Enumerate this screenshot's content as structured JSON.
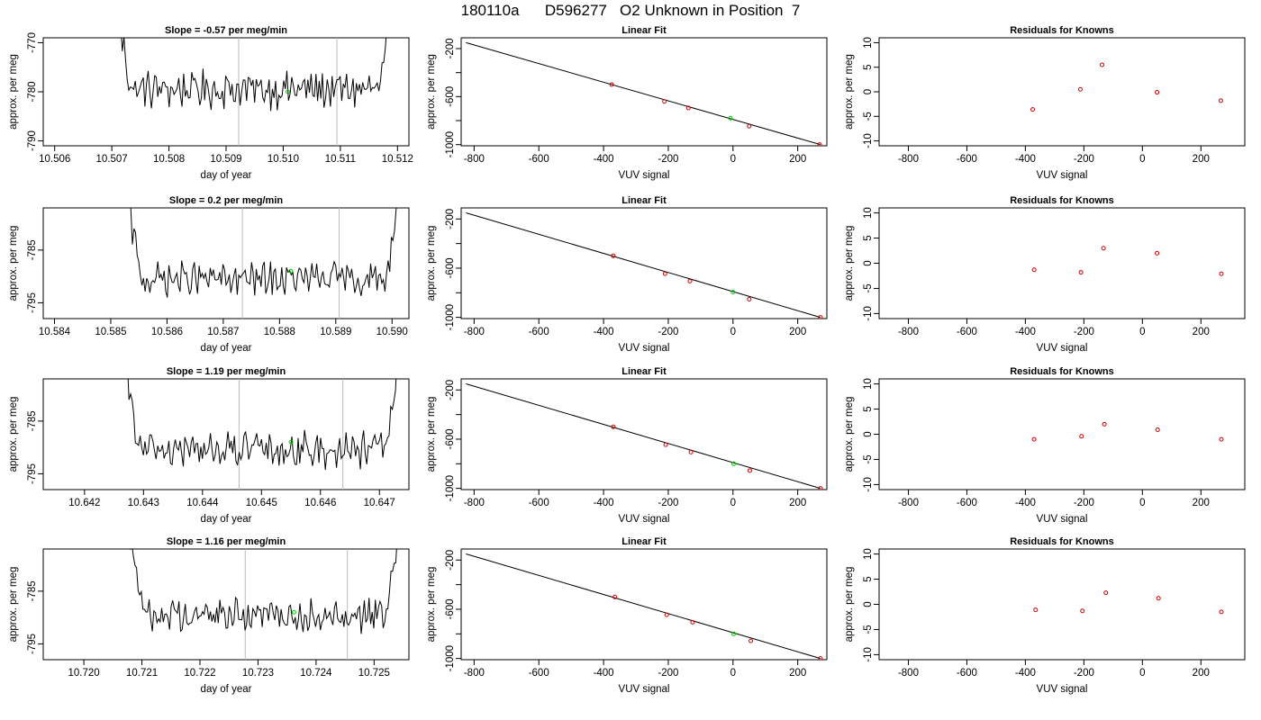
{
  "title": "180110a      D596277   O2 Unknown in Position  7",
  "colors": {
    "trace": "#000000",
    "fit_line": "#000000",
    "known_points": "#cc0000",
    "unknown_point": "#00cc00",
    "cycle_lines": "#bbbbbb"
  },
  "chart_data": [
    {
      "row": 1,
      "type": "line",
      "title": "Slope =  -0.57  per meg/min",
      "xlabel": "day of year",
      "ylabel": "approx. per meg",
      "xlim": [
        10.5058,
        10.5122
      ],
      "ylim": [
        -791,
        -769
      ],
      "xticks": [
        "10.506",
        "10.507",
        "10.508",
        "10.509",
        "10.510",
        "10.511",
        "10.512"
      ],
      "xtick_values": [
        10.506,
        10.507,
        10.508,
        10.509,
        10.51,
        10.511,
        10.512
      ],
      "yticks": [
        "-790",
        "-780",
        "-770"
      ],
      "ytick_values": [
        -790,
        -780,
        -770
      ],
      "x_start": 10.5071,
      "x_end": 10.5119,
      "baseline": -779.5,
      "amplitude": 3.2,
      "cycle_lines": [
        10.50922,
        10.51094
      ],
      "unknown_point": [
        10.51008,
        -780
      ]
    },
    {
      "row": 1,
      "type": "scatter",
      "title": "Linear Fit",
      "xlabel": "VUV signal",
      "ylabel": "approx. per meg",
      "xlim": [
        -840,
        290
      ],
      "ylim": [
        -1010,
        -110
      ],
      "xticks": [
        "-800",
        "-600",
        "-400",
        "-200",
        "0",
        "200"
      ],
      "xtick_values": [
        -800,
        -600,
        -400,
        -200,
        0,
        200
      ],
      "yticks": [
        "-1000",
        "-600",
        "-200"
      ],
      "ytick_values": [
        -1000,
        -600,
        -200
      ],
      "y_minor_ticks": [
        -800,
        -400
      ],
      "fit_line": [
        [
          -825,
          -150
        ],
        [
          270,
          -1000
        ]
      ],
      "knowns": [
        [
          -375,
          -500
        ],
        [
          -212,
          -640
        ],
        [
          -138,
          -695
        ],
        [
          50,
          -847
        ],
        [
          268,
          -1000
        ]
      ],
      "unknown": [
        -8,
        -780
      ]
    },
    {
      "row": 1,
      "type": "scatter",
      "title": "Residuals for Knowns",
      "xlabel": "VUV signal",
      "ylabel": "approx. per meg",
      "xlim": [
        -900,
        350
      ],
      "ylim": [
        -11,
        11
      ],
      "xticks": [
        "-800",
        "-600",
        "-400",
        "-200",
        "0",
        "200"
      ],
      "xtick_values": [
        -800,
        -600,
        -400,
        -200,
        0,
        200
      ],
      "yticks": [
        "-10",
        "-5",
        "0",
        "5",
        "10"
      ],
      "ytick_values": [
        -10,
        -5,
        0,
        5,
        10
      ],
      "residuals": [
        [
          -375,
          -3.6
        ],
        [
          -212,
          0.5
        ],
        [
          -138,
          5.5
        ],
        [
          50,
          -0.1
        ],
        [
          268,
          -1.8
        ]
      ]
    },
    {
      "row": 2,
      "type": "line",
      "title": "Slope =  0.2  per meg/min",
      "xlabel": "day of year",
      "ylabel": "approx. per meg",
      "xlim": [
        10.5838,
        10.5903
      ],
      "ylim": [
        -798,
        -777
      ],
      "xticks": [
        "10.584",
        "10.585",
        "10.586",
        "10.587",
        "10.588",
        "10.589",
        "10.590"
      ],
      "xtick_values": [
        10.584,
        10.585,
        10.586,
        10.587,
        10.588,
        10.589,
        10.59
      ],
      "yticks": [
        "-795",
        "-785"
      ],
      "ytick_values": [
        -795,
        -785
      ],
      "x_start": 10.5853,
      "x_end": 10.5901,
      "baseline": -790.5,
      "amplitude": 2.6,
      "cycle_lines": [
        10.58734,
        10.58906
      ],
      "unknown_point": [
        10.5882,
        -789
      ]
    },
    {
      "row": 2,
      "type": "scatter",
      "title": "Linear Fit",
      "xlabel": "VUV signal",
      "ylabel": "approx. per meg",
      "xlim": [
        -840,
        290
      ],
      "ylim": [
        -1010,
        -110
      ],
      "xticks": [
        "-800",
        "-600",
        "-400",
        "-200",
        "0",
        "200"
      ],
      "xtick_values": [
        -800,
        -600,
        -400,
        -200,
        0,
        200
      ],
      "yticks": [
        "-1000",
        "-600",
        "-200"
      ],
      "ytick_values": [
        -1000,
        -600,
        -200
      ],
      "y_minor_ticks": [
        -800,
        -400
      ],
      "fit_line": [
        [
          -825,
          -150
        ],
        [
          270,
          -1000
        ]
      ],
      "knowns": [
        [
          -370,
          -500
        ],
        [
          -210,
          -645
        ],
        [
          -133,
          -705
        ],
        [
          50,
          -853
        ],
        [
          270,
          -1000
        ]
      ],
      "unknown": [
        0,
        -795
      ]
    },
    {
      "row": 2,
      "type": "scatter",
      "title": "Residuals for Knowns",
      "xlabel": "VUV signal",
      "ylabel": "approx. per meg",
      "xlim": [
        -900,
        350
      ],
      "ylim": [
        -11,
        11
      ],
      "xticks": [
        "-800",
        "-600",
        "-400",
        "-200",
        "0",
        "200"
      ],
      "xtick_values": [
        -800,
        -600,
        -400,
        -200,
        0,
        200
      ],
      "yticks": [
        "-10",
        "-5",
        "0",
        "5",
        "10"
      ],
      "ytick_values": [
        -10,
        -5,
        0,
        5,
        10
      ],
      "residuals": [
        [
          -370,
          -1.3
        ],
        [
          -210,
          -1.8
        ],
        [
          -133,
          3.0
        ],
        [
          50,
          2.0
        ],
        [
          270,
          -2.1
        ]
      ]
    },
    {
      "row": 3,
      "type": "line",
      "title": "Slope =  1.19  per meg/min",
      "xlabel": "day of year",
      "ylabel": "approx. per meg",
      "xlim": [
        10.6413,
        10.6475
      ],
      "ylim": [
        -798,
        -777
      ],
      "xticks": [
        "10.642",
        "10.643",
        "10.644",
        "10.645",
        "10.646",
        "10.647"
      ],
      "xtick_values": [
        10.642,
        10.643,
        10.644,
        10.645,
        10.646,
        10.647
      ],
      "yticks": [
        "-795",
        "-785"
      ],
      "ytick_values": [
        -795,
        -785
      ],
      "x_start": 10.6427,
      "x_end": 10.6473,
      "baseline": -790.5,
      "amplitude": 2.8,
      "cycle_lines": [
        10.64462,
        10.64638
      ],
      "unknown_point": [
        10.6455,
        -789
      ]
    },
    {
      "row": 3,
      "type": "scatter",
      "title": "Linear Fit",
      "xlabel": "VUV signal",
      "ylabel": "approx. per meg",
      "xlim": [
        -840,
        290
      ],
      "ylim": [
        -1010,
        -110
      ],
      "xticks": [
        "-800",
        "-600",
        "-400",
        "-200",
        "0",
        "200"
      ],
      "xtick_values": [
        -800,
        -600,
        -400,
        -200,
        0,
        200
      ],
      "yticks": [
        "-1000",
        "-600",
        "-200"
      ],
      "ytick_values": [
        -1000,
        -600,
        -200
      ],
      "y_minor_ticks": [
        -800,
        -400
      ],
      "fit_line": [
        [
          -825,
          -150
        ],
        [
          270,
          -1000
        ]
      ],
      "knowns": [
        [
          -370,
          -500
        ],
        [
          -208,
          -645
        ],
        [
          -130,
          -705
        ],
        [
          52,
          -855
        ],
        [
          270,
          -1000
        ]
      ],
      "unknown": [
        2,
        -800
      ]
    },
    {
      "row": 3,
      "type": "scatter",
      "title": "Residuals for Knowns",
      "xlabel": "VUV signal",
      "ylabel": "approx. per meg",
      "xlim": [
        -900,
        350
      ],
      "ylim": [
        -11,
        11
      ],
      "xticks": [
        "-800",
        "-600",
        "-400",
        "-200",
        "0",
        "200"
      ],
      "xtick_values": [
        -800,
        -600,
        -400,
        -200,
        0,
        200
      ],
      "yticks": [
        "-10",
        "-5",
        "0",
        "5",
        "10"
      ],
      "ytick_values": [
        -10,
        -5,
        0,
        5,
        10
      ],
      "residuals": [
        [
          -370,
          -1.0
        ],
        [
          -208,
          -0.4
        ],
        [
          -130,
          2.0
        ],
        [
          52,
          0.9
        ],
        [
          270,
          -1.0
        ]
      ]
    },
    {
      "row": 4,
      "type": "line",
      "title": "Slope =  1.16  per meg/min",
      "xlabel": "day of year",
      "ylabel": "approx. per meg",
      "xlim": [
        10.7193,
        10.7256
      ],
      "ylim": [
        -798,
        -777
      ],
      "xticks": [
        "10.720",
        "10.721",
        "10.722",
        "10.723",
        "10.724",
        "10.725"
      ],
      "xtick_values": [
        10.72,
        10.721,
        10.722,
        10.723,
        10.724,
        10.725
      ],
      "yticks": [
        "-795",
        "-785"
      ],
      "ytick_values": [
        -795,
        -785
      ],
      "x_start": 10.7208,
      "x_end": 10.7254,
      "baseline": -789.5,
      "amplitude": 2.6,
      "cycle_lines": [
        10.72278,
        10.72454
      ],
      "unknown_point": [
        10.72362,
        -789
      ]
    },
    {
      "row": 4,
      "type": "scatter",
      "title": "Linear Fit",
      "xlabel": "VUV signal",
      "ylabel": "approx. per meg",
      "xlim": [
        -840,
        290
      ],
      "ylim": [
        -1010,
        -110
      ],
      "xticks": [
        "-800",
        "-600",
        "-400",
        "-200",
        "0",
        "200"
      ],
      "xtick_values": [
        -800,
        -600,
        -400,
        -200,
        0,
        200
      ],
      "yticks": [
        "-1000",
        "-600",
        "-200"
      ],
      "ytick_values": [
        -1000,
        -600,
        -200
      ],
      "y_minor_ticks": [
        -800,
        -400
      ],
      "fit_line": [
        [
          -825,
          -150
        ],
        [
          270,
          -1000
        ]
      ],
      "knowns": [
        [
          -365,
          -500
        ],
        [
          -205,
          -645
        ],
        [
          -125,
          -705
        ],
        [
          55,
          -857
        ],
        [
          270,
          -1000
        ]
      ],
      "unknown": [
        2,
        -800
      ]
    },
    {
      "row": 4,
      "type": "scatter",
      "title": "Residuals for Knowns",
      "xlabel": "VUV signal",
      "ylabel": "approx. per meg",
      "xlim": [
        -900,
        350
      ],
      "ylim": [
        -11,
        11
      ],
      "xticks": [
        "-800",
        "-600",
        "-400",
        "-200",
        "0",
        "200"
      ],
      "xtick_values": [
        -800,
        -600,
        -400,
        -200,
        0,
        200
      ],
      "yticks": [
        "-10",
        "-5",
        "0",
        "5",
        "10"
      ],
      "ytick_values": [
        -10,
        -5,
        0,
        5,
        10
      ],
      "residuals": [
        [
          -365,
          -1.1
        ],
        [
          -205,
          -1.3
        ],
        [
          -125,
          2.3
        ],
        [
          55,
          1.2
        ],
        [
          270,
          -1.5
        ]
      ]
    }
  ]
}
